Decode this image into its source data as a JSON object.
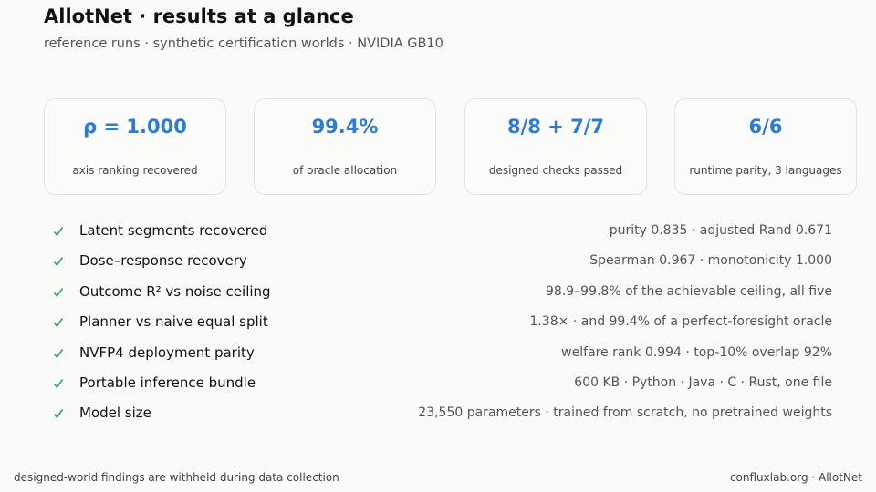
{
  "header": {
    "title": "AllotNet · results at a glance",
    "subtitle": "reference runs · synthetic certification worlds · NVIDIA GB10"
  },
  "cards": [
    {
      "value": "ρ = 1.000",
      "caption": "axis ranking recovered"
    },
    {
      "value": "99.4%",
      "caption": "of oracle allocation"
    },
    {
      "value": "8/8 + 7/7",
      "caption": "designed checks passed"
    },
    {
      "value": "6/6",
      "caption": "runtime parity, 3 languages"
    }
  ],
  "checks": [
    {
      "label": "Latent segments recovered",
      "detail": "purity 0.835 · adjusted Rand 0.671"
    },
    {
      "label": "Dose–response recovery",
      "detail": "Spearman 0.967 · monotonicity 1.000"
    },
    {
      "label": "Outcome R² vs noise ceiling",
      "detail": "98.9–99.8% of the achievable ceiling, all five"
    },
    {
      "label": "Planner vs naive equal split",
      "detail": "1.38× · and 99.4% of a perfect-foresight oracle"
    },
    {
      "label": "NVFP4 deployment parity",
      "detail": "welfare rank 0.994 · top-10% overlap 92%"
    },
    {
      "label": "Portable inference bundle",
      "detail": "600 KB · Python · Java · C · Rust, one file"
    },
    {
      "label": "Model size",
      "detail": "23,550 parameters · trained from scratch, no pretrained weights"
    }
  ],
  "footer": {
    "note": "designed-world findings are withheld during data collection",
    "credit": "confluxlab.org · AllotNet"
  }
}
